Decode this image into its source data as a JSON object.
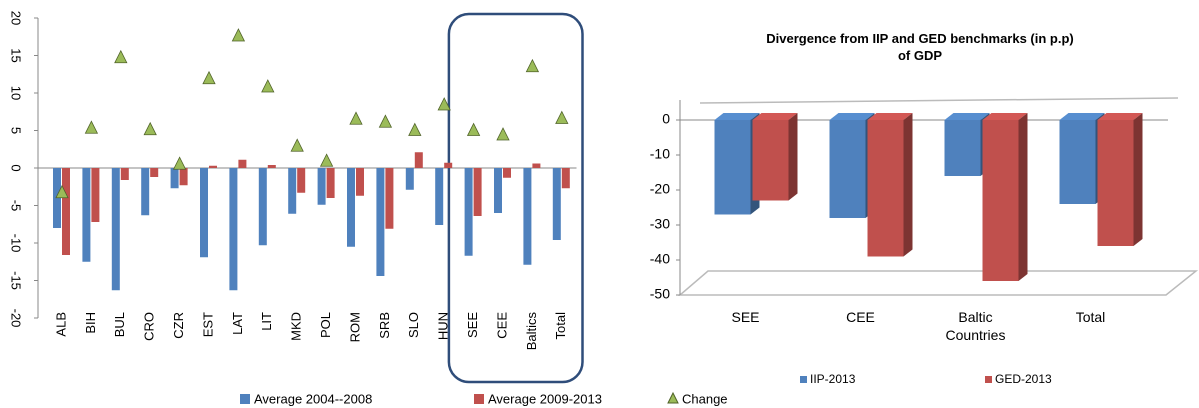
{
  "chart_data": [
    {
      "type": "bar",
      "categories": [
        "ALB",
        "BIH",
        "BUL",
        "CRO",
        "CZR",
        "EST",
        "LAT",
        "LIT",
        "MKD",
        "POL",
        "ROM",
        "SRB",
        "SLO",
        "HUN",
        "SEE",
        "CEE",
        "Baltics",
        "Total"
      ],
      "series": [
        {
          "name": "Average 2004--2008",
          "color": "#4f81bd",
          "values": [
            -8,
            -12.5,
            -16.3,
            -6.3,
            -2.7,
            -11.9,
            -16.3,
            -10.3,
            -6.1,
            -4.9,
            -10.5,
            -14.4,
            -2.9,
            -7.6,
            -11.7,
            -6.0,
            -12.9,
            -9.6
          ]
        },
        {
          "name": "Average 2009-2013",
          "color": "#c0504d",
          "values": [
            -11.6,
            -7.2,
            -1.6,
            -1.2,
            -2.3,
            0.3,
            1.1,
            0.4,
            -3.3,
            -4.0,
            -3.7,
            -8.1,
            2.1,
            0.7,
            -6.4,
            -1.3,
            0.6,
            -2.7
          ]
        },
        {
          "name": "Change",
          "color": "#9bbb59",
          "marker": "triangle",
          "values": [
            -3.3,
            5.3,
            14.7,
            5.1,
            0.5,
            11.9,
            17.6,
            10.8,
            2.9,
            0.9,
            6.5,
            6.1,
            5.0,
            8.4,
            5.0,
            4.4,
            13.5,
            6.6
          ]
        }
      ],
      "ylim": [
        -20,
        20
      ],
      "yticks": [
        -20,
        -15,
        -10,
        -5,
        0,
        5,
        10,
        15,
        20
      ],
      "highlight": [
        "SEE",
        "Total"
      ]
    },
    {
      "type": "bar3d",
      "title": "Divergence from IIP and GED  benchmarks  (in p.p) of GDP",
      "categories": [
        "SEE",
        "CEE",
        "Baltic Countries",
        "Total"
      ],
      "series": [
        {
          "name": "IIP-2013",
          "color": "#4f81bd",
          "values": [
            -27,
            -28,
            -16,
            -24
          ]
        },
        {
          "name": "GED-2013",
          "color": "#c0504d",
          "values": [
            -23,
            -39,
            -46,
            -36
          ]
        }
      ],
      "ylim": [
        -50,
        0
      ],
      "yticks": [
        -50,
        -40,
        -30,
        -20,
        -10,
        0
      ]
    }
  ]
}
